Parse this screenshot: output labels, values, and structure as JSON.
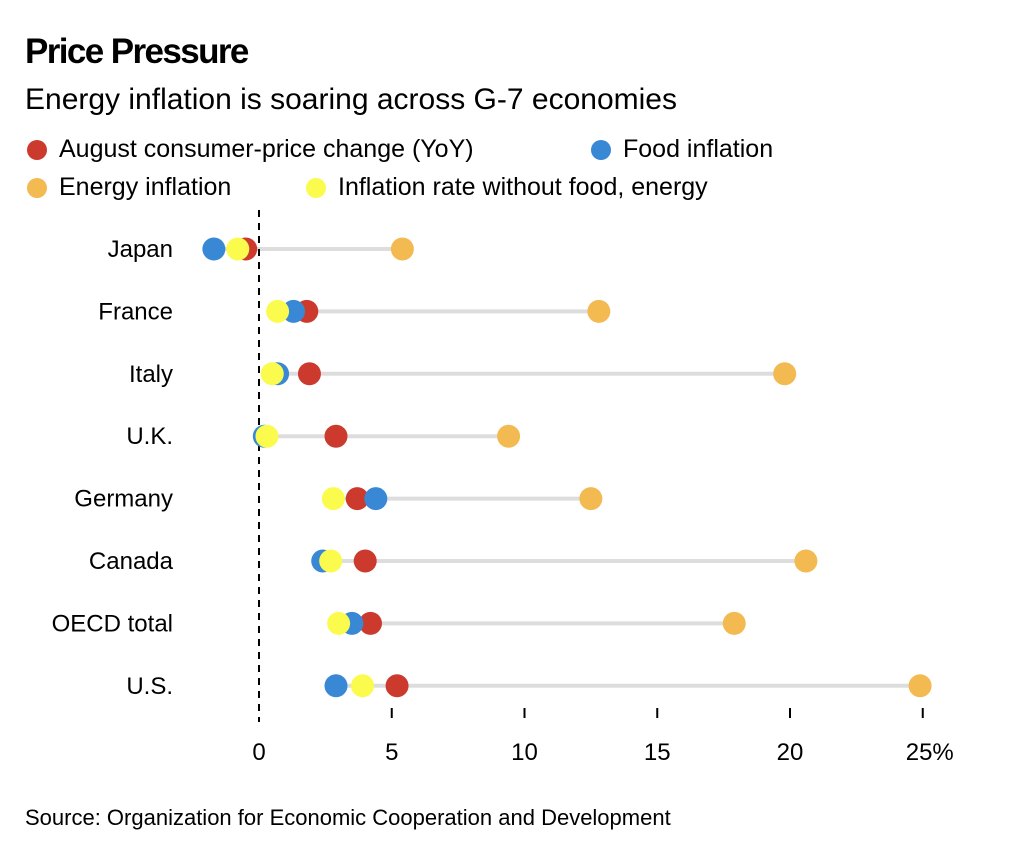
{
  "header": {
    "title": "Price Pressure",
    "subtitle": "Energy inflation is soaring across G-7 economies"
  },
  "legend": [
    {
      "key": "cpi",
      "label": "August consumer-price change (YoY)",
      "color": "#cc3a2e"
    },
    {
      "key": "food",
      "label": "Food inflation",
      "color": "#3888d6"
    },
    {
      "key": "energy",
      "label": "Energy inflation",
      "color": "#f2ba51"
    },
    {
      "key": "core",
      "label": "Inflation rate without food, energy",
      "color": "#fbfb4d"
    }
  ],
  "footer": {
    "source": "Source: Organization for Economic Cooperation and Development"
  },
  "chart_data": {
    "type": "dot-range",
    "title": "Price Pressure",
    "subtitle": "Energy inflation is soaring across G-7 economies",
    "xlabel": "",
    "ylabel": "",
    "x_unit": "%",
    "xlim": [
      -2,
      25
    ],
    "x_ticks": [
      0,
      5,
      10,
      15,
      20,
      25
    ],
    "x_tick_labels": [
      "0",
      "5",
      "10",
      "15",
      "20",
      "25%"
    ],
    "zero_line": "dashed",
    "grid": false,
    "legend_position": "top",
    "categories": [
      "Japan",
      "France",
      "Italy",
      "U.K.",
      "Germany",
      "Canada",
      "OECD total",
      "U.S."
    ],
    "series": [
      {
        "key": "cpi",
        "name": "August consumer-price change (YoY)",
        "color": "#cc3a2e",
        "values": [
          -0.5,
          1.8,
          1.9,
          2.9,
          3.7,
          4.0,
          4.2,
          5.2
        ]
      },
      {
        "key": "food",
        "name": "Food inflation",
        "color": "#3888d6",
        "values": [
          -1.7,
          1.3,
          0.7,
          0.2,
          4.4,
          2.4,
          3.5,
          2.9
        ]
      },
      {
        "key": "energy",
        "name": "Energy inflation",
        "color": "#f2ba51",
        "values": [
          5.4,
          12.8,
          19.8,
          9.4,
          12.5,
          20.6,
          17.9,
          24.9
        ]
      },
      {
        "key": "core",
        "name": "Inflation rate without food, energy",
        "color": "#fbfb4d",
        "values": [
          -0.8,
          0.7,
          0.5,
          0.3,
          2.8,
          2.7,
          3.0,
          3.9
        ]
      }
    ],
    "draw_order": [
      "energy",
      "cpi",
      "food",
      "core"
    ],
    "connector_color": "#dddddd"
  }
}
